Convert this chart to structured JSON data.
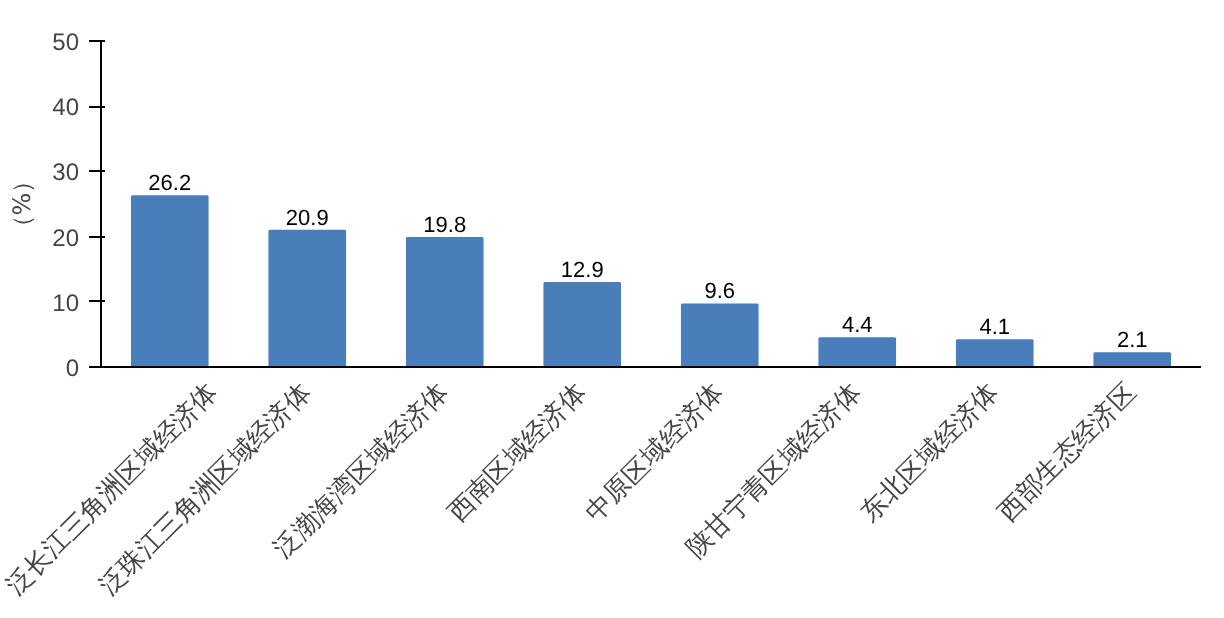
{
  "chart_data": {
    "type": "bar",
    "ylabel": "（%）",
    "categories": [
      "泛长江三角洲区域经济体",
      "泛珠江三角洲区域经济体",
      "泛渤海湾区域经济体",
      "西南区域经济体",
      "中原区域经济体",
      "陕甘宁青区域经济体",
      "东北区域经济体",
      "西部生态经济区"
    ],
    "values": [
      26.2,
      20.9,
      19.8,
      12.9,
      9.6,
      4.4,
      4.1,
      2.1
    ],
    "color": "#4a7ebb",
    "ylim": [
      0,
      50
    ],
    "yticks": [
      0,
      10,
      20,
      30,
      40,
      50
    ],
    "grid": false,
    "data_labels": true
  }
}
